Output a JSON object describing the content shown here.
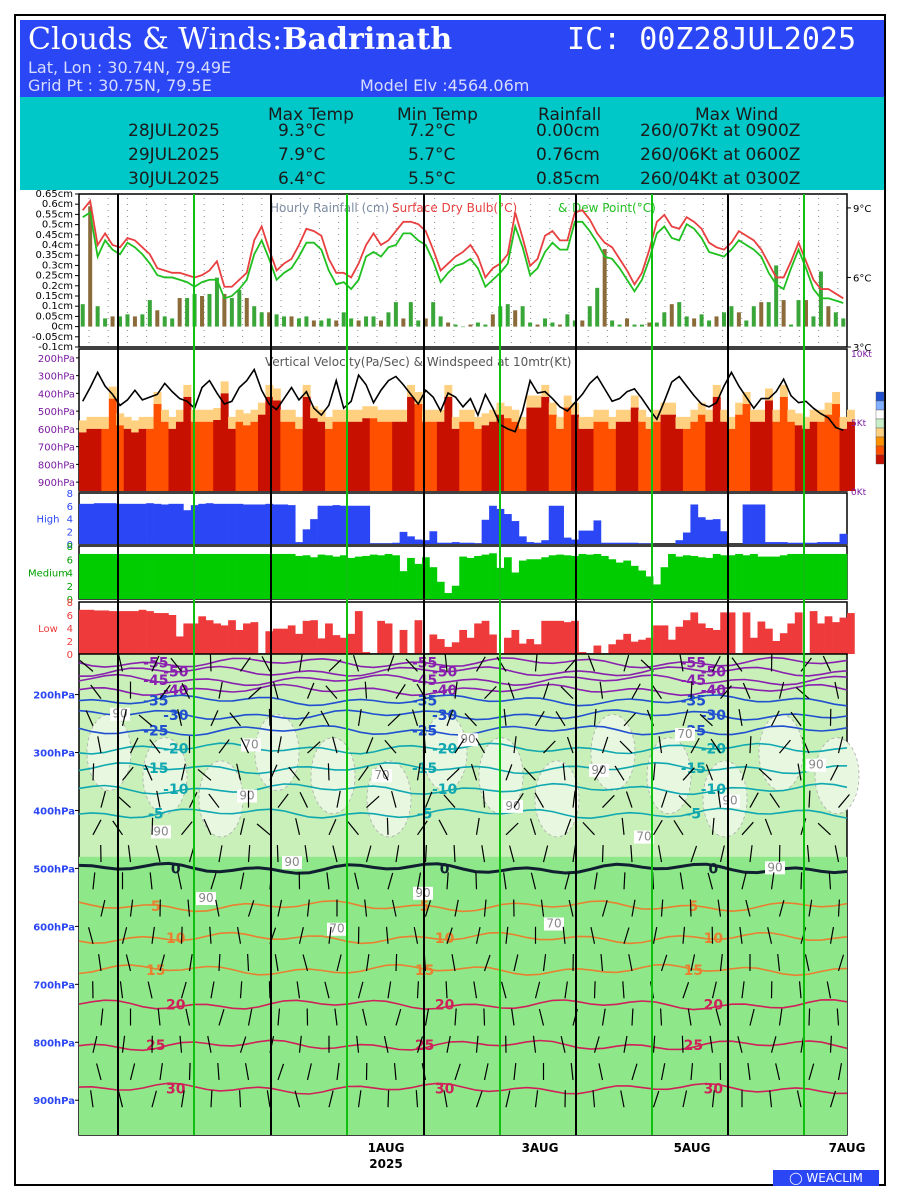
{
  "header": {
    "title_prefix": "Clouds & Winds:",
    "location": "Badrinath",
    "ic": "IC: 00Z28JUL2025",
    "latlon": "Lat, Lon : 30.74N, 79.49E",
    "gridpt": "Grid Pt  : 30.75N, 79.5E",
    "elev": "Model Elv :4564.06m"
  },
  "summary": {
    "headers": [
      "Max Temp",
      "Min Temp",
      "Rainfall",
      "Max Wind"
    ],
    "rows": [
      {
        "date": "28JUL2025",
        "max": "9.3°C",
        "min": "7.2°C",
        "rain": "0.00cm",
        "wind": "260/07Kt at 0900Z"
      },
      {
        "date": "29JUL2025",
        "max": "7.9°C",
        "min": "5.7°C",
        "rain": "0.76cm",
        "wind": "260/06Kt at 0600Z"
      },
      {
        "date": "30JUL2025",
        "max": "6.4°C",
        "min": "5.5°C",
        "rain": "0.85cm",
        "wind": "260/04Kt at 0300Z"
      }
    ]
  },
  "colors": {
    "rain": "#3aa63a",
    "rain_alt": "#8b6b3a",
    "drybulb": "#e84040",
    "dewpoint": "#20c020",
    "high": "#2a46f5",
    "medium": "#00cc00",
    "low": "#ee3a3a",
    "vv_strong": "#c81000",
    "vv_mid": "#ff5000",
    "vv_weak": "#ff9000"
  },
  "chart_data": [
    {
      "type": "bar",
      "title": "Hourly Rainfall (cm)",
      "ylabel": "",
      "yticks": [
        "0.65cm",
        "0.6cm",
        "0.55cm",
        "0.5cm",
        "0.45cm",
        "0.4cm",
        "0.35cm",
        "0.3cm",
        "0.25cm",
        "0.2cm",
        "0.15cm",
        "0.1cm",
        "0.05cm",
        "0cm",
        "-0.05cm",
        "-0.1cm"
      ],
      "ylim": [
        -0.1,
        0.65
      ],
      "values": [
        0.11,
        0.59,
        0.1,
        0.04,
        0.05,
        0.05,
        0.06,
        0.05,
        0.06,
        0.13,
        0.08,
        0.05,
        0.04,
        0.14,
        0.14,
        0.16,
        0.15,
        0.16,
        0.24,
        0.16,
        0.14,
        0.18,
        0.14,
        0.1,
        0.07,
        0.07,
        0.06,
        0.05,
        0.05,
        0.04,
        0.05,
        0.03,
        0.03,
        0.04,
        0.03,
        0.07,
        0.04,
        0.03,
        0.05,
        0.05,
        0.03,
        0.07,
        0.12,
        0.04,
        0.12,
        0.03,
        0.04,
        0.12,
        0.05,
        0.02,
        0.01,
        0.0,
        0.01,
        0.02,
        0.01,
        0.06,
        0.1,
        0.11,
        0.08,
        0.1,
        0.02,
        0.01,
        0.04,
        0.02,
        0.01,
        0.06,
        0.03,
        0.03,
        0.1,
        0.19,
        0.38,
        0.03,
        0.01,
        0.04,
        0.01,
        0.01,
        0.02,
        0.02,
        0.07,
        0.11,
        0.12,
        0.05,
        0.04,
        0.06,
        0.03,
        0.05,
        0.07,
        0.1,
        0.07,
        0.03,
        0.1,
        0.12,
        0.12,
        0.3,
        0.13,
        0.01,
        0.13,
        0.13,
        0.05,
        0.27,
        0.1,
        0.07,
        0.04
      ]
    },
    {
      "type": "line",
      "title": "Surface Dry Bulb(°C) & Dew Point(°C)",
      "yticks": [
        "9°C",
        "6°C",
        "3°C"
      ],
      "ylim": [
        3,
        9.6
      ],
      "series": [
        {
          "name": "Surface Dry Bulb(°C)",
          "values": [
            8.9,
            9.3,
            7.4,
            7.9,
            7.4,
            7.3,
            7.7,
            7.6,
            7.3,
            7.0,
            6.4,
            6.3,
            6.2,
            6.2,
            6.1,
            6.0,
            6.1,
            6.3,
            6.7,
            5.6,
            5.6,
            5.9,
            6.2,
            7.6,
            8.2,
            7.2,
            6.3,
            6.6,
            6.8,
            7.4,
            8.1,
            8.0,
            7.8,
            6.8,
            6.2,
            6.2,
            6.0,
            6.6,
            7.4,
            7.9,
            7.4,
            7.6,
            8.0,
            8.4,
            8.4,
            8.3,
            8.0,
            7.2,
            6.3,
            6.6,
            6.9,
            7.1,
            7.4,
            6.9,
            6.0,
            6.4,
            6.6,
            7.0,
            8.8,
            7.7,
            6.5,
            6.8,
            7.8,
            8.0,
            7.6,
            7.6,
            8.8,
            8.9,
            8.5,
            7.9,
            7.5,
            7.3,
            6.8,
            6.3,
            5.7,
            6.2,
            7.2,
            8.4,
            8.7,
            8.2,
            8.1,
            8.6,
            8.4,
            8.1,
            7.5,
            7.3,
            7.2,
            7.5,
            8.0,
            7.8,
            7.6,
            7.2,
            6.6,
            6.0,
            6.0,
            6.7,
            7.5,
            6.7,
            5.9,
            5.5,
            5.5,
            5.3,
            5.1
          ]
        },
        {
          "name": "Dew Point(°C)",
          "values": [
            8.6,
            8.8,
            6.9,
            7.6,
            7.2,
            7.0,
            7.5,
            7.3,
            7.0,
            6.6,
            6.1,
            6.0,
            6.0,
            5.9,
            5.8,
            5.6,
            5.8,
            5.9,
            5.9,
            5.1,
            5.2,
            5.5,
            5.9,
            7.0,
            7.6,
            6.8,
            5.9,
            6.2,
            6.4,
            6.9,
            7.5,
            7.5,
            7.2,
            6.3,
            5.7,
            5.8,
            5.5,
            5.9,
            6.9,
            7.1,
            6.9,
            7.3,
            7.4,
            7.9,
            7.9,
            7.6,
            7.4,
            6.7,
            5.8,
            6.2,
            6.5,
            6.6,
            6.8,
            6.4,
            5.6,
            5.9,
            6.2,
            6.6,
            8.2,
            7.3,
            6.1,
            6.4,
            7.1,
            7.5,
            7.2,
            7.2,
            8.4,
            8.4,
            8.0,
            7.5,
            6.9,
            6.8,
            6.4,
            5.9,
            5.4,
            5.9,
            6.8,
            7.9,
            8.2,
            7.7,
            7.6,
            8.3,
            8.1,
            7.7,
            7.1,
            7.0,
            6.9,
            7.2,
            7.6,
            7.4,
            7.2,
            6.9,
            6.2,
            5.7,
            5.5,
            6.4,
            7.2,
            6.4,
            5.5,
            5.1,
            5.1,
            5.0,
            4.9
          ]
        }
      ]
    },
    {
      "type": "area",
      "title": "Vertical Velocity(Pa/Sec) & Windspeed at 10mtr(Kt)",
      "yticks": [
        "200hPa",
        "300hPa",
        "400hPa",
        "500hPa",
        "600hPa",
        "700hPa",
        "800hPa",
        "900hPa"
      ],
      "right_ticks": [
        "10Kt",
        "5Kt",
        "0Kt"
      ],
      "windspeed": [
        6.5,
        7.5,
        8.6,
        7.6,
        7.0,
        6.2,
        6.6,
        7.3,
        6.6,
        6.8,
        7.0,
        7.8,
        7.2,
        6.7,
        6.5,
        6.0,
        7.5,
        8.0,
        7.1,
        6.3,
        6.5,
        7.5,
        8.0,
        8.8,
        7.3,
        6.3,
        5.9,
        6.7,
        7.5,
        6.6,
        7.2,
        6.0,
        5.5,
        6.2,
        8.0,
        6.0,
        6.5,
        8.4,
        7.7,
        6.4,
        7.3,
        8.0,
        8.3,
        7.7,
        7.0,
        6.3,
        7.3,
        6.8,
        5.8,
        7.1,
        6.8,
        6.1,
        6.7,
        5.5,
        7.0,
        6.0,
        4.8,
        4.5,
        4.3,
        5.8,
        8.0,
        7.1,
        7.2,
        6.7,
        6.1,
        5.8,
        6.4,
        7.0,
        7.8,
        8.3,
        7.4,
        6.5,
        6.7,
        7.2,
        7.4,
        6.7,
        5.9,
        5.2,
        6.5,
        7.9,
        8.3,
        7.6,
        6.9,
        6.3,
        6.1,
        6.4,
        7.6,
        8.6,
        7.6,
        6.8,
        6.0,
        6.7,
        6.7,
        7.2,
        8.1,
        6.9,
        6.4,
        6.5,
        6.0,
        5.6,
        5.3,
        4.6,
        4.4
      ],
      "top_levels_hpa": [
        620,
        600,
        600,
        600,
        430,
        580,
        600,
        620,
        600,
        600,
        460,
        560,
        600,
        560,
        420,
        560,
        560,
        560,
        550,
        400,
        600,
        560,
        580,
        560,
        520,
        420,
        440,
        560,
        560,
        600,
        420,
        540,
        560,
        600,
        560,
        560,
        560,
        560,
        540,
        540,
        560,
        560,
        560,
        560,
        420,
        460,
        560,
        560,
        560,
        420,
        600,
        560,
        560,
        600,
        580,
        560,
        520,
        540,
        560,
        600,
        480,
        480,
        420,
        520,
        600,
        480,
        520,
        600,
        600,
        560,
        560,
        600,
        560,
        560,
        480,
        560,
        600,
        560,
        520,
        520,
        600,
        600,
        560,
        520,
        560,
        420,
        560,
        600,
        520,
        460,
        560,
        560,
        440,
        560,
        420,
        560,
        580,
        600,
        560,
        560,
        520,
        460,
        600,
        560
      ]
    },
    {
      "type": "bar",
      "title": "High",
      "yticks": [
        "0",
        "2",
        "4",
        "6",
        "8"
      ],
      "ylim": [
        0,
        8
      ],
      "values": [
        6.3,
        6.3,
        6.4,
        6.4,
        6.4,
        6.3,
        6.3,
        6.3,
        6.3,
        6.4,
        6.3,
        6.2,
        6.3,
        6.3,
        5.3,
        6.1,
        6.3,
        6.4,
        6.3,
        6.3,
        6.3,
        6.3,
        6.2,
        6.2,
        6.2,
        6.3,
        6.2,
        6.2,
        6.1,
        0.3,
        2.3,
        3.9,
        6.0,
        6.0,
        6.1,
        6.0,
        6.0,
        6.0,
        6.0,
        0.1,
        0.1,
        0.1,
        0.2,
        1.9,
        1.2,
        0.7,
        0.6,
        2.0,
        0.2,
        0.2,
        0.3,
        0.2,
        0.2,
        0.1,
        3.8,
        6.0,
        5.5,
        4.7,
        3.6,
        1.2,
        0.3,
        0.2,
        0.6,
        6.0,
        6.0,
        1.0,
        0.7,
        2.1,
        2.1,
        3.7,
        0.2,
        0.2,
        0.2,
        0.2,
        0.2,
        0.1,
        0.1,
        0.0,
        0.0,
        0.0,
        0.6,
        1.8,
        6.2,
        4.2,
        3.8,
        3.9,
        2.0,
        0.0,
        0.0,
        6.2,
        6.2,
        6.2,
        0.3,
        0.3,
        0.3,
        0.2,
        0.2,
        0.2,
        0.2,
        0.3,
        0.3,
        0.3,
        1.6
      ]
    },
    {
      "type": "bar",
      "title": "Medium",
      "yticks": [
        "0",
        "2",
        "4",
        "6",
        "8"
      ],
      "ylim": [
        0,
        8
      ],
      "values": [
        6.8,
        6.8,
        6.8,
        6.8,
        6.8,
        6.8,
        6.8,
        6.8,
        6.8,
        6.8,
        6.8,
        6.8,
        6.8,
        6.8,
        6.8,
        6.8,
        6.8,
        6.8,
        6.8,
        6.8,
        6.8,
        6.8,
        6.8,
        6.8,
        6.8,
        6.8,
        6.8,
        6.8,
        6.8,
        6.5,
        6.6,
        6.3,
        6.7,
        6.6,
        6.4,
        6.6,
        6.2,
        6.4,
        6.5,
        6.7,
        6.6,
        6.8,
        6.6,
        4.2,
        6.2,
        5.3,
        6.3,
        4.8,
        2.6,
        0.9,
        2.0,
        6.4,
        6.2,
        6.5,
        6.7,
        6.9,
        4.7,
        6.3,
        4.0,
        5.8,
        6.0,
        6.0,
        6.3,
        6.6,
        6.7,
        6.6,
        6.5,
        6.8,
        6.7,
        6.8,
        6.5,
        6.0,
        5.5,
        5.8,
        5.0,
        4.3,
        3.4,
        2.2,
        4.8,
        6.8,
        6.4,
        6.6,
        6.5,
        6.3,
        6.2,
        6.8,
        6.6,
        6.6,
        6.8,
        6.6,
        6.8,
        6.4,
        6.4,
        6.4,
        6.6,
        6.8,
        6.8,
        6.8,
        6.8,
        6.8,
        6.8,
        6.8,
        6.8
      ]
    },
    {
      "type": "bar",
      "title": "Low",
      "yticks": [
        "0",
        "2",
        "4",
        "6",
        "8"
      ],
      "ylim": [
        0,
        8
      ],
      "values": [
        6.8,
        6.8,
        6.7,
        6.7,
        6.6,
        6.6,
        6.6,
        6.6,
        6.8,
        6.6,
        6.3,
        6.3,
        6.0,
        2.7,
        4.7,
        4.7,
        5.8,
        5.2,
        4.7,
        4.4,
        5.2,
        3.7,
        4.7,
        4.9,
        0.0,
        3.5,
        3.9,
        3.9,
        4.4,
        3.1,
        5.1,
        5.2,
        2.4,
        4.7,
        2.9,
        2.5,
        3.1,
        6.6,
        0.3,
        0.0,
        5.1,
        4.7,
        0.0,
        3.7,
        0.0,
        5.2,
        0.0,
        3.0,
        2.3,
        1.1,
        1.8,
        3.7,
        2.5,
        4.7,
        5.1,
        3.0,
        0.0,
        2.5,
        3.7,
        1.6,
        2.3,
        1.5,
        5.1,
        5.1,
        5.1,
        4.9,
        5.1,
        0.3,
        0.0,
        1.3,
        0.0,
        1.5,
        2.2,
        3.1,
        1.9,
        2.2,
        2.5,
        4.4,
        4.4,
        2.2,
        4.2,
        5.2,
        6.4,
        4.7,
        4.0,
        3.7,
        6.4,
        6.4,
        0.0,
        6.4,
        2.5,
        5.0,
        3.9,
        2.0,
        3.2,
        4.7,
        6.4,
        0.0,
        6.6,
        4.7,
        5.8,
        4.9,
        5.6,
        6.3
      ]
    },
    {
      "type": "line",
      "title": "",
      "yticks": [
        "200hPa",
        "300hPa",
        "400hPa",
        "500hPa",
        "600hPa",
        "700hPa",
        "800hPa",
        "900hPa"
      ],
      "xticks": [
        "1AUG",
        "3AUG",
        "5AUG",
        "7AUG"
      ],
      "xlabel": "2025",
      "isotherms": [
        {
          "label": "-55",
          "level_hpa": 145
        },
        {
          "label": "-50",
          "level_hpa": 160
        },
        {
          "label": "-45",
          "level_hpa": 175
        },
        {
          "label": "-40",
          "level_hpa": 192
        },
        {
          "label": "-35",
          "level_hpa": 210
        },
        {
          "label": "-30",
          "level_hpa": 235
        },
        {
          "label": "-25",
          "level_hpa": 262
        },
        {
          "label": "-20",
          "level_hpa": 293
        },
        {
          "label": "-15",
          "level_hpa": 327
        },
        {
          "label": "-10",
          "level_hpa": 363
        },
        {
          "label": "-5",
          "level_hpa": 405
        },
        {
          "label": "0",
          "level_hpa": 500
        },
        {
          "label": "5",
          "level_hpa": 565
        },
        {
          "label": "10",
          "level_hpa": 620
        },
        {
          "label": "15",
          "level_hpa": 675
        },
        {
          "label": "20",
          "level_hpa": 735
        },
        {
          "label": "25",
          "level_hpa": 805
        },
        {
          "label": "30",
          "level_hpa": 880
        }
      ],
      "humidity_labels": [
        "90",
        "70",
        "70",
        "90",
        "70",
        "90",
        "90",
        "70",
        "90",
        "90",
        "90",
        "90",
        "90",
        "90",
        "70",
        "70",
        "90",
        "90"
      ]
    }
  ],
  "logo": "WEACLIM"
}
